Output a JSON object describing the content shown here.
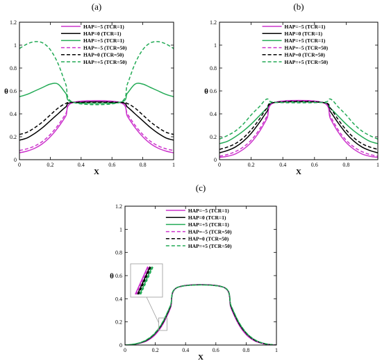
{
  "chart_data": [
    {
      "type": "line",
      "panel_label": "(a)",
      "xlabel": "X",
      "ylabel": "θ",
      "xlim": [
        0,
        1
      ],
      "ylim": [
        0,
        1.2
      ],
      "xticks": [
        "0",
        "0.2",
        "0.4",
        "0.6",
        "0.8",
        "1"
      ],
      "yticks": [
        "0",
        "0.2",
        "0.4",
        "0.6",
        "0.8",
        "1",
        "1.2"
      ],
      "legend_position": "top-right",
      "grid": false,
      "series": [
        {
          "name": "HAP=−5 (TCR=1)",
          "color": "#cc33cc",
          "dash": "solid",
          "x": [
            0,
            0.05,
            0.1,
            0.15,
            0.2,
            0.25,
            0.3,
            0.35
          ],
          "y": [
            0.06,
            0.075,
            0.1,
            0.14,
            0.2,
            0.28,
            0.38,
            0.5
          ]
        },
        {
          "name": "HAP=0 (TCR=1)",
          "color": "#000000",
          "dash": "solid",
          "x": [
            0,
            0.05,
            0.1,
            0.15,
            0.2,
            0.25,
            0.3,
            0.35
          ],
          "y": [
            0.17,
            0.19,
            0.23,
            0.28,
            0.34,
            0.4,
            0.46,
            0.5
          ]
        },
        {
          "name": "HAP=+5 (TCR=1)",
          "color": "#22aa55",
          "dash": "solid",
          "x": [
            0,
            0.05,
            0.1,
            0.15,
            0.2,
            0.25,
            0.3,
            0.35
          ],
          "y": [
            0.55,
            0.57,
            0.6,
            0.63,
            0.66,
            0.66,
            0.58,
            0.5
          ]
        },
        {
          "name": "HAP=−5 (TCR=50)",
          "color": "#cc33cc",
          "dash": "dashed",
          "x": [
            0,
            0.05,
            0.1,
            0.15,
            0.2,
            0.25,
            0.3,
            0.35
          ],
          "y": [
            0.08,
            0.095,
            0.12,
            0.16,
            0.22,
            0.3,
            0.4,
            0.5
          ]
        },
        {
          "name": "HAP=0 (TCR=50)",
          "color": "#000000",
          "dash": "dashed",
          "x": [
            0,
            0.05,
            0.1,
            0.15,
            0.2,
            0.25,
            0.3,
            0.35
          ],
          "y": [
            0.22,
            0.24,
            0.28,
            0.33,
            0.39,
            0.45,
            0.49,
            0.5
          ]
        },
        {
          "name": "HAP=+5 (TCR=50)",
          "color": "#22aa55",
          "dash": "dashed",
          "x": [
            0,
            0.05,
            0.1,
            0.15,
            0.2,
            0.25,
            0.3,
            0.35
          ],
          "y": [
            0.97,
            1.01,
            1.03,
            1.02,
            0.96,
            0.84,
            0.66,
            0.5
          ]
        }
      ]
    },
    {
      "type": "line",
      "panel_label": "(b)",
      "xlabel": "X",
      "ylabel": "θ",
      "xlim": [
        0,
        1
      ],
      "ylim": [
        0,
        1.2
      ],
      "xticks": [
        "0",
        "0.2",
        "0.4",
        "0.6",
        "0.8",
        "1"
      ],
      "yticks": [
        "0",
        "0.2",
        "0.4",
        "0.6",
        "0.8",
        "1",
        "1.2"
      ],
      "legend_position": "top-right",
      "grid": false,
      "series": [
        {
          "name": "HAP=−5 (TCR=1)",
          "color": "#cc33cc",
          "dash": "solid",
          "x": [
            0,
            0.05,
            0.1,
            0.15,
            0.2,
            0.25,
            0.3,
            0.35
          ],
          "y": [
            0.02,
            0.03,
            0.05,
            0.09,
            0.15,
            0.24,
            0.36,
            0.5
          ]
        },
        {
          "name": "HAP=0 (TCR=1)",
          "color": "#000000",
          "dash": "solid",
          "x": [
            0,
            0.05,
            0.1,
            0.15,
            0.2,
            0.25,
            0.3,
            0.35
          ],
          "y": [
            0.06,
            0.08,
            0.11,
            0.16,
            0.23,
            0.32,
            0.42,
            0.5
          ]
        },
        {
          "name": "HAP=+5 (TCR=1)",
          "color": "#22aa55",
          "dash": "solid",
          "x": [
            0,
            0.05,
            0.1,
            0.15,
            0.2,
            0.25,
            0.3,
            0.35
          ],
          "y": [
            0.14,
            0.16,
            0.2,
            0.25,
            0.31,
            0.38,
            0.45,
            0.5
          ]
        },
        {
          "name": "HAP=−5 (TCR=50)",
          "color": "#cc33cc",
          "dash": "dashed",
          "x": [
            0,
            0.05,
            0.1,
            0.15,
            0.2,
            0.25,
            0.3,
            0.35
          ],
          "y": [
            0.03,
            0.045,
            0.07,
            0.11,
            0.17,
            0.26,
            0.38,
            0.5
          ]
        },
        {
          "name": "HAP=0 (TCR=50)",
          "color": "#000000",
          "dash": "dashed",
          "x": [
            0,
            0.05,
            0.1,
            0.15,
            0.2,
            0.25,
            0.3,
            0.35
          ],
          "y": [
            0.09,
            0.11,
            0.14,
            0.19,
            0.26,
            0.35,
            0.45,
            0.5
          ]
        },
        {
          "name": "HAP=+5 (TCR=50)",
          "color": "#22aa55",
          "dash": "dashed",
          "x": [
            0,
            0.05,
            0.1,
            0.15,
            0.2,
            0.25,
            0.3,
            0.35
          ],
          "y": [
            0.18,
            0.21,
            0.25,
            0.31,
            0.39,
            0.46,
            0.53,
            0.5
          ]
        }
      ]
    },
    {
      "type": "line",
      "panel_label": "(c)",
      "xlabel": "X",
      "ylabel": "θ",
      "xlim": [
        0,
        1
      ],
      "ylim": [
        0,
        1.2
      ],
      "xticks": [
        "0",
        "0.2",
        "0.4",
        "0.6",
        "0.8",
        "1"
      ],
      "yticks": [
        "0",
        "0.2",
        "0.4",
        "0.6",
        "0.8",
        "1",
        "1.2"
      ],
      "legend_position": "top-right",
      "grid": false,
      "inset": "zoom near X≈0.25",
      "series": [
        {
          "name": "HAP=−5 (TCR=1)",
          "color": "#cc33cc",
          "dash": "solid",
          "x": [
            0,
            0.05,
            0.1,
            0.15,
            0.2,
            0.25,
            0.3,
            0.35
          ],
          "y": [
            0.0,
            0.004,
            0.016,
            0.04,
            0.09,
            0.18,
            0.32,
            0.5
          ]
        },
        {
          "name": "HAP=0 (TCR=1)",
          "color": "#000000",
          "dash": "solid",
          "x": [
            0,
            0.05,
            0.1,
            0.15,
            0.2,
            0.25,
            0.3,
            0.35
          ],
          "y": [
            0.0,
            0.005,
            0.018,
            0.045,
            0.1,
            0.19,
            0.33,
            0.5
          ]
        },
        {
          "name": "HAP=+5 (TCR=1)",
          "color": "#22aa55",
          "dash": "solid",
          "x": [
            0,
            0.05,
            0.1,
            0.15,
            0.2,
            0.25,
            0.3,
            0.35
          ],
          "y": [
            0.0,
            0.006,
            0.02,
            0.05,
            0.105,
            0.2,
            0.34,
            0.5
          ]
        },
        {
          "name": "HAP=−5 (TCR=50)",
          "color": "#cc33cc",
          "dash": "dashed",
          "x": [
            0,
            0.05,
            0.1,
            0.15,
            0.2,
            0.25,
            0.3,
            0.35
          ],
          "y": [
            0.0,
            0.004,
            0.017,
            0.042,
            0.092,
            0.182,
            0.322,
            0.5
          ]
        },
        {
          "name": "HAP=0 (TCR=50)",
          "color": "#000000",
          "dash": "dashed",
          "x": [
            0,
            0.05,
            0.1,
            0.15,
            0.2,
            0.25,
            0.3,
            0.35
          ],
          "y": [
            0.0,
            0.005,
            0.019,
            0.047,
            0.102,
            0.192,
            0.332,
            0.5
          ]
        },
        {
          "name": "HAP=+5 (TCR=50)",
          "color": "#22aa55",
          "dash": "dashed",
          "x": [
            0,
            0.05,
            0.1,
            0.15,
            0.2,
            0.25,
            0.3,
            0.35
          ],
          "y": [
            0.0,
            0.006,
            0.021,
            0.052,
            0.108,
            0.202,
            0.342,
            0.5
          ]
        }
      ]
    }
  ]
}
